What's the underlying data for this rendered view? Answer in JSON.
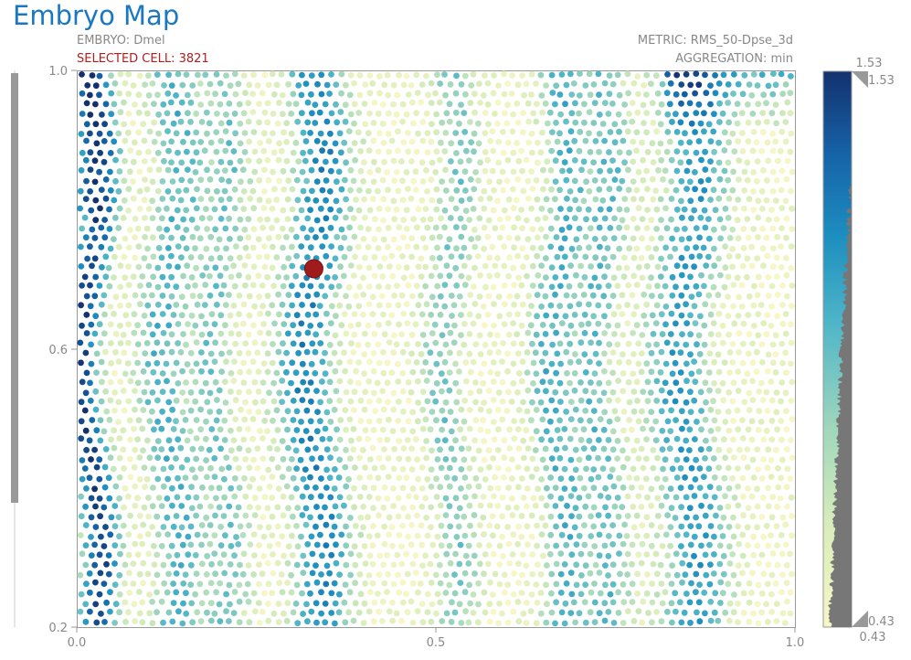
{
  "title": "Embryo Map",
  "meta": {
    "embryo": "EMBRYO: Dmel",
    "selected_cell": "SELECTED CELL: 3821",
    "metric": "METRIC: RMS_50-Dpse_3d",
    "aggregation": "AGGREGATION: min"
  },
  "colorbar": {
    "max_label": "1.53",
    "min_label": "0.43",
    "max_handle_label": "1.53",
    "min_handle_label": "0.43",
    "colors": [
      "#f7f6c6",
      "#d9edba",
      "#9fd6bc",
      "#4db5c8",
      "#1d8fc0",
      "#1663a8",
      "#14316e"
    ]
  },
  "chart_data": {
    "type": "scatter",
    "title": "Embryo Map",
    "xlim": [
      0.0,
      1.0
    ],
    "ylim": [
      0.2,
      1.0
    ],
    "xticks": [
      "0.0",
      "0.5",
      "1.0"
    ],
    "yticks": [
      "1.0",
      "0.6",
      "0.2"
    ],
    "color_range": [
      0.43,
      1.53
    ],
    "selected_point": {
      "cell": 3821,
      "x": 0.33,
      "y": 0.715
    },
    "grid": false,
    "legend": "colorbar-right"
  }
}
